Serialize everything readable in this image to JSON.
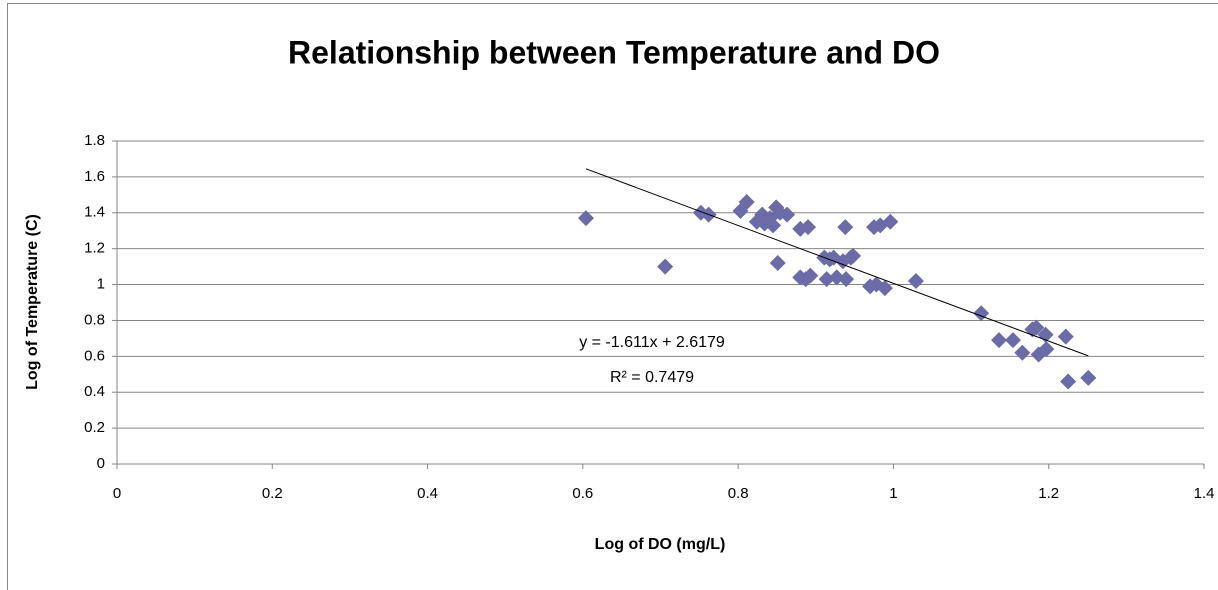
{
  "chart_data": {
    "type": "scatter",
    "title": "Relationship between Temperature and DO",
    "x_label": "Log of DO (mg/L)",
    "y_label": "Log of Temperature (C)",
    "color": "#6b6ba8",
    "grid": true,
    "xlim": [
      0,
      1.4
    ],
    "xticks": [
      0,
      0.2,
      0.4,
      0.6,
      0.8,
      1,
      1.2,
      1.4
    ],
    "ylim": [
      0,
      1.8
    ],
    "yticks": [
      0,
      0.2,
      0.4,
      0.6,
      0.8,
      1,
      1.2,
      1.4,
      1.6,
      1.8
    ],
    "x": [
      0.604,
      0.706,
      0.752,
      0.762,
      0.803,
      0.811,
      0.824,
      0.831,
      0.834,
      0.841,
      0.845,
      0.849,
      0.854,
      0.863,
      0.851,
      0.88,
      0.89,
      0.88,
      0.887,
      0.893,
      0.911,
      0.918,
      0.923,
      0.914,
      0.927,
      0.935,
      0.938,
      0.939,
      0.945,
      0.948,
      0.97,
      0.978,
      0.975,
      0.983,
      0.989,
      0.996,
      1.029,
      1.113,
      1.136,
      1.154,
      1.166,
      1.179,
      1.184,
      1.187,
      1.196,
      1.197,
      1.222,
      1.225,
      1.251
    ],
    "values": [
      1.37,
      1.1,
      1.4,
      1.39,
      1.41,
      1.46,
      1.35,
      1.39,
      1.34,
      1.37,
      1.33,
      1.43,
      1.4,
      1.39,
      1.12,
      1.31,
      1.32,
      1.04,
      1.03,
      1.05,
      1.15,
      1.14,
      1.15,
      1.03,
      1.04,
      1.13,
      1.32,
      1.03,
      1.15,
      1.16,
      0.99,
      1.0,
      1.32,
      1.33,
      0.98,
      1.35,
      1.02,
      0.84,
      0.69,
      0.69,
      0.62,
      0.75,
      0.76,
      0.61,
      0.72,
      0.64,
      0.71,
      0.46,
      0.48
    ],
    "trendline": {
      "slope": -1.611,
      "intercept": 2.6179,
      "equation": "y = -1.611x + 2.6179",
      "r_squared": "R² = 0.7479"
    }
  }
}
